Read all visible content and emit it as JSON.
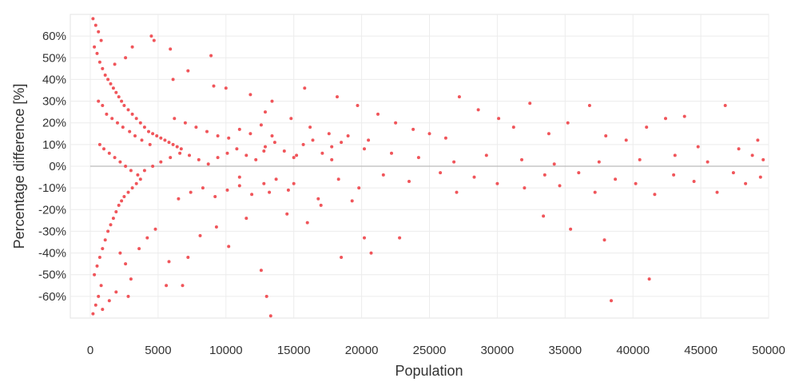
{
  "chart_data": {
    "type": "scatter",
    "title": "",
    "xlabel": "Population",
    "ylabel": "Percentage difference [%]",
    "xlim": [
      0,
      50000
    ],
    "ylim": [
      -70,
      70
    ],
    "x_ticks": [
      0,
      5000,
      10000,
      15000,
      20000,
      25000,
      30000,
      35000,
      40000,
      45000,
      50000
    ],
    "x_tick_labels": [
      "0",
      "5000",
      "10000",
      "15000",
      "20000",
      "25000",
      "30000",
      "35000",
      "40000",
      "45000",
      "50000"
    ],
    "y_ticks": [
      60,
      50,
      40,
      30,
      20,
      10,
      0,
      -10,
      -20,
      -30,
      -40,
      -50,
      -60
    ],
    "y_tick_labels": [
      "60%",
      "50%",
      "40%",
      "30%",
      "20%",
      "10%",
      "0%",
      "-10%",
      "-20%",
      "-30%",
      "-40%",
      "-50%",
      "-60%"
    ],
    "grid": true,
    "reference_line_y": 0,
    "marker_color": "#f0555a",
    "zero_line_color": "#bbbbbb",
    "grid_color": "#ececec",
    "series": [
      {
        "values_note_free": true,
        "points": [
          [
            200,
            68
          ],
          [
            400,
            65
          ],
          [
            600,
            62
          ],
          [
            800,
            58
          ],
          [
            300,
            55
          ],
          [
            500,
            52
          ],
          [
            700,
            48
          ],
          [
            900,
            45
          ],
          [
            1100,
            42
          ],
          [
            1300,
            40
          ],
          [
            1500,
            38
          ],
          [
            1700,
            36
          ],
          [
            1900,
            34
          ],
          [
            2100,
            32
          ],
          [
            2300,
            30
          ],
          [
            2500,
            28
          ],
          [
            2800,
            26
          ],
          [
            3100,
            24
          ],
          [
            3400,
            22
          ],
          [
            3700,
            20
          ],
          [
            4000,
            18
          ],
          [
            4300,
            16
          ],
          [
            4600,
            15
          ],
          [
            4900,
            14
          ],
          [
            5200,
            13
          ],
          [
            5500,
            12
          ],
          [
            5800,
            11
          ],
          [
            6100,
            10
          ],
          [
            6400,
            9
          ],
          [
            6700,
            8
          ],
          [
            200,
            -68
          ],
          [
            400,
            -64
          ],
          [
            600,
            -60
          ],
          [
            800,
            -55
          ],
          [
            300,
            -50
          ],
          [
            500,
            -46
          ],
          [
            700,
            -42
          ],
          [
            900,
            -38
          ],
          [
            1100,
            -34
          ],
          [
            1300,
            -30
          ],
          [
            1500,
            -27
          ],
          [
            1700,
            -24
          ],
          [
            1900,
            -21
          ],
          [
            2100,
            -18
          ],
          [
            2300,
            -16
          ],
          [
            2500,
            -14
          ],
          [
            2800,
            -12
          ],
          [
            3100,
            -10
          ],
          [
            3400,
            -8
          ],
          [
            3700,
            -6
          ],
          [
            4500,
            60
          ],
          [
            4700,
            58
          ],
          [
            3100,
            55
          ],
          [
            8900,
            51
          ],
          [
            5900,
            54
          ],
          [
            2600,
            50
          ],
          [
            1800,
            47
          ],
          [
            7200,
            44
          ],
          [
            6100,
            40
          ],
          [
            9100,
            37
          ],
          [
            10000,
            36
          ],
          [
            11800,
            33
          ],
          [
            15800,
            36
          ],
          [
            13400,
            30
          ],
          [
            12900,
            25
          ],
          [
            14800,
            22
          ],
          [
            16200,
            18
          ],
          [
            17600,
            15
          ],
          [
            19000,
            14
          ],
          [
            20500,
            12
          ],
          [
            18200,
            32
          ],
          [
            19700,
            28
          ],
          [
            21200,
            24
          ],
          [
            22500,
            20
          ],
          [
            23800,
            17
          ],
          [
            25000,
            15
          ],
          [
            26200,
            13
          ],
          [
            27200,
            32
          ],
          [
            28600,
            26
          ],
          [
            30100,
            22
          ],
          [
            31200,
            18
          ],
          [
            32400,
            29
          ],
          [
            33800,
            15
          ],
          [
            35200,
            20
          ],
          [
            36800,
            28
          ],
          [
            38000,
            14
          ],
          [
            39500,
            12
          ],
          [
            41000,
            18
          ],
          [
            42400,
            22
          ],
          [
            43800,
            23
          ],
          [
            44800,
            9
          ],
          [
            46800,
            28
          ],
          [
            47800,
            8
          ],
          [
            48800,
            5
          ],
          [
            49600,
            3
          ],
          [
            49200,
            12
          ],
          [
            45500,
            2
          ],
          [
            43100,
            5
          ],
          [
            40500,
            3
          ],
          [
            37500,
            2
          ],
          [
            34200,
            1
          ],
          [
            31800,
            3
          ],
          [
            29200,
            5
          ],
          [
            26800,
            2
          ],
          [
            24200,
            4
          ],
          [
            22200,
            6
          ],
          [
            20200,
            8
          ],
          [
            17800,
            3
          ],
          [
            15200,
            5
          ],
          [
            12800,
            7
          ],
          [
            11000,
            -5
          ],
          [
            13200,
            -12
          ],
          [
            15000,
            -8
          ],
          [
            16800,
            -15
          ],
          [
            18300,
            -6
          ],
          [
            19800,
            -10
          ],
          [
            21600,
            -4
          ],
          [
            23500,
            -7
          ],
          [
            25800,
            -3
          ],
          [
            27000,
            -12
          ],
          [
            28300,
            -5
          ],
          [
            30000,
            -8
          ],
          [
            32000,
            -10
          ],
          [
            33500,
            -4
          ],
          [
            34600,
            -9
          ],
          [
            36000,
            -3
          ],
          [
            37200,
            -12
          ],
          [
            38700,
            -6
          ],
          [
            40200,
            -8
          ],
          [
            41600,
            -13
          ],
          [
            43000,
            -4
          ],
          [
            44500,
            -7
          ],
          [
            46200,
            -12
          ],
          [
            47400,
            -3
          ],
          [
            48300,
            -8
          ],
          [
            49400,
            -5
          ],
          [
            5800,
            -44
          ],
          [
            5600,
            -55
          ],
          [
            6800,
            -55
          ],
          [
            7200,
            -42
          ],
          [
            10200,
            -37
          ],
          [
            12600,
            -48
          ],
          [
            13000,
            -60
          ],
          [
            13300,
            -69
          ],
          [
            18500,
            -42
          ],
          [
            20200,
            -33
          ],
          [
            20700,
            -40
          ],
          [
            22800,
            -33
          ],
          [
            33400,
            -23
          ],
          [
            35400,
            -29
          ],
          [
            37900,
            -34
          ],
          [
            38400,
            -62
          ],
          [
            41200,
            -52
          ],
          [
            8100,
            -32
          ],
          [
            9300,
            -28
          ],
          [
            11500,
            -24
          ],
          [
            14500,
            -22
          ],
          [
            16000,
            -26
          ],
          [
            17000,
            -18
          ],
          [
            19300,
            -16
          ],
          [
            2200,
            -40
          ],
          [
            2600,
            -45
          ],
          [
            1900,
            -58
          ],
          [
            1400,
            -62
          ],
          [
            900,
            -66
          ],
          [
            2800,
            -60
          ],
          [
            3000,
            -52
          ],
          [
            3600,
            -38
          ],
          [
            4200,
            -33
          ],
          [
            4800,
            -29
          ],
          [
            600,
            30
          ],
          [
            900,
            28
          ],
          [
            1200,
            24
          ],
          [
            1600,
            22
          ],
          [
            2000,
            20
          ],
          [
            2400,
            18
          ],
          [
            2900,
            16
          ],
          [
            3300,
            14
          ],
          [
            3800,
            12
          ],
          [
            4400,
            10
          ],
          [
            700,
            10
          ],
          [
            1000,
            8
          ],
          [
            1400,
            6
          ],
          [
            1800,
            4
          ],
          [
            2200,
            2
          ],
          [
            2600,
            0
          ],
          [
            3000,
            -2
          ],
          [
            3500,
            -4
          ],
          [
            4000,
            -2
          ],
          [
            4600,
            0
          ],
          [
            5200,
            2
          ],
          [
            5900,
            4
          ],
          [
            6600,
            6
          ],
          [
            7300,
            5
          ],
          [
            8000,
            3
          ],
          [
            8700,
            1
          ],
          [
            9400,
            4
          ],
          [
            10100,
            6
          ],
          [
            10800,
            8
          ],
          [
            11500,
            5
          ],
          [
            12200,
            3
          ],
          [
            12900,
            9
          ],
          [
            13600,
            11
          ],
          [
            14300,
            7
          ],
          [
            15000,
            4
          ],
          [
            15700,
            10
          ],
          [
            16400,
            12
          ],
          [
            17100,
            6
          ],
          [
            17800,
            9
          ],
          [
            18500,
            11
          ],
          [
            6200,
            22
          ],
          [
            7000,
            20
          ],
          [
            7800,
            18
          ],
          [
            8600,
            16
          ],
          [
            9400,
            14
          ],
          [
            10200,
            13
          ],
          [
            11000,
            17
          ],
          [
            11800,
            15
          ],
          [
            12600,
            19
          ],
          [
            13400,
            14
          ],
          [
            6500,
            -15
          ],
          [
            7400,
            -12
          ],
          [
            8300,
            -10
          ],
          [
            9200,
            -14
          ],
          [
            10100,
            -11
          ],
          [
            11000,
            -9
          ],
          [
            11900,
            -13
          ],
          [
            12800,
            -8
          ],
          [
            13700,
            -6
          ],
          [
            14600,
            -11
          ]
        ]
      }
    ]
  }
}
